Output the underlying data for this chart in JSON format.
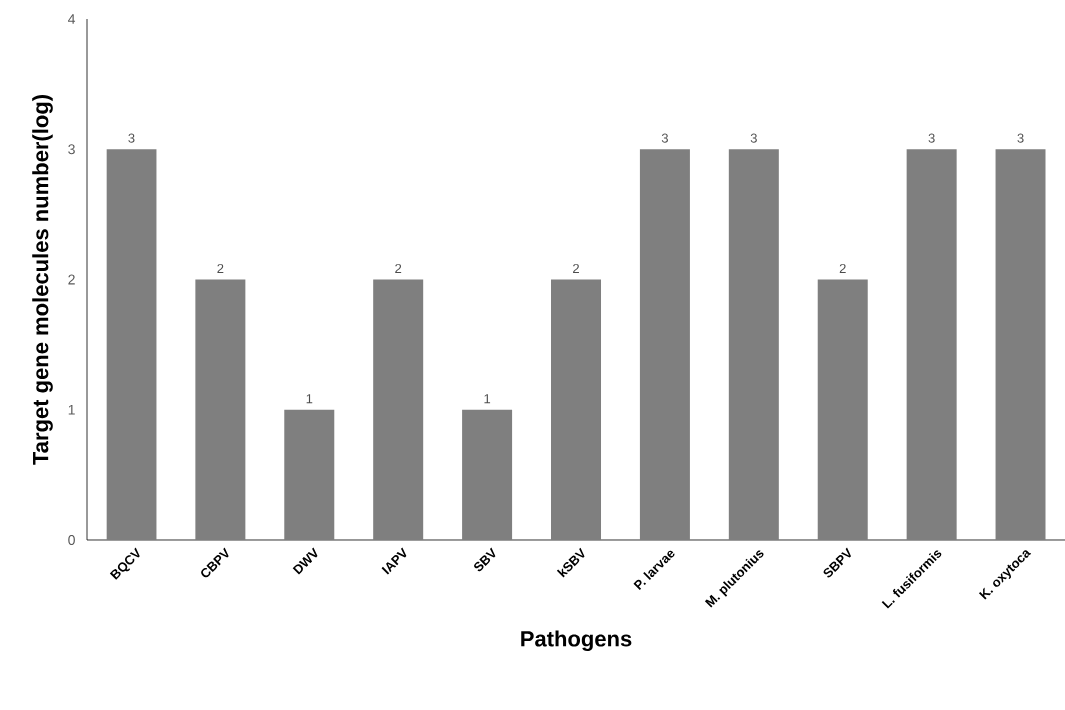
{
  "chart_data": {
    "type": "bar",
    "xlabel": "Pathogens",
    "ylabel": "Target gene molecules number(log)",
    "categories": [
      "BQCV",
      "CBPV",
      "DWV",
      "IAPV",
      "SBV",
      "kSBV",
      "P. larvae",
      "M. plutonius",
      "SBPV",
      "L. fusiformis",
      "K. oxytoca"
    ],
    "values": [
      3,
      2,
      1,
      2,
      1,
      2,
      3,
      3,
      2,
      3,
      3
    ],
    "color": "#7f7f7f",
    "ylim": [
      0,
      4
    ],
    "yticks": [
      0,
      1,
      2,
      3,
      4
    ],
    "data_labels": true
  }
}
